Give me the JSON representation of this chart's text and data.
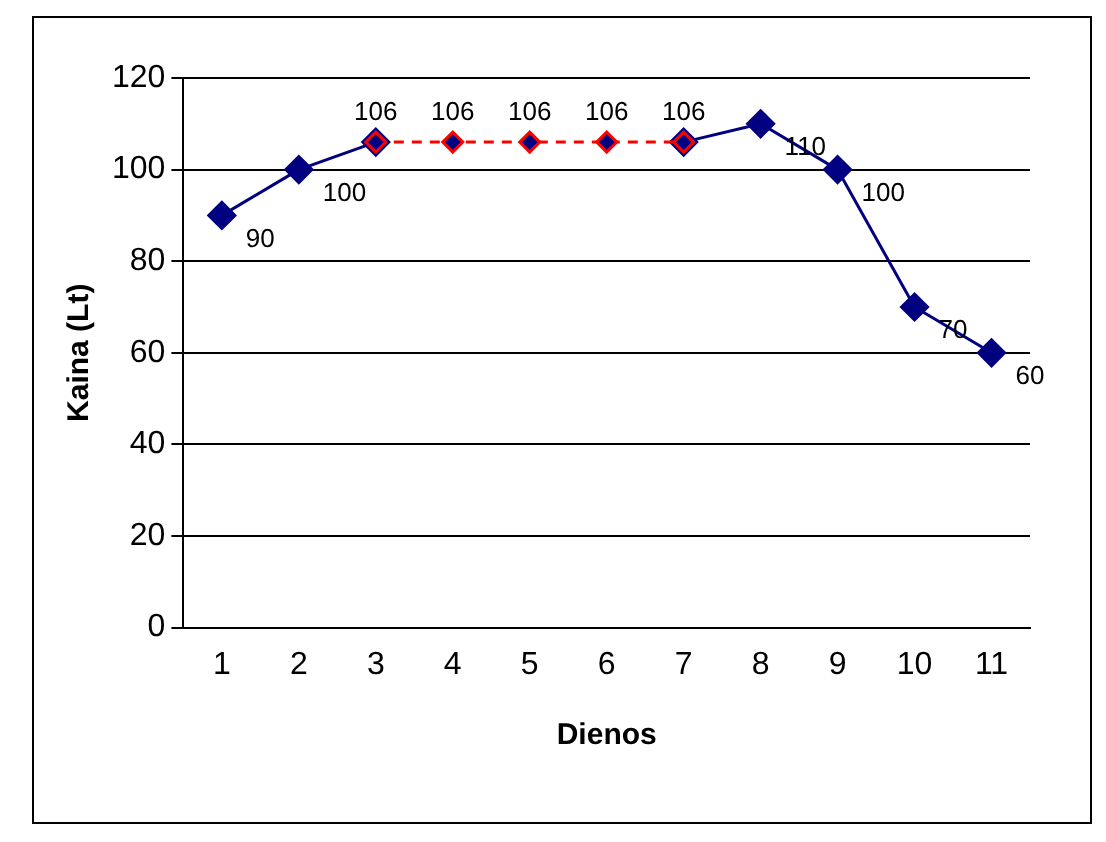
{
  "chart_data": {
    "type": "line",
    "xlabel": "Dienos",
    "ylabel": "Kaina (Lt)",
    "categories": [
      "1",
      "2",
      "3",
      "4",
      "5",
      "6",
      "7",
      "8",
      "9",
      "10",
      "11"
    ],
    "series": [
      {
        "color": "#000080",
        "line_style": "solid",
        "values": [
          90,
          100,
          106,
          null,
          null,
          null,
          106,
          110,
          100,
          70,
          60
        ],
        "value_labels": [
          "90",
          "100",
          null,
          null,
          null,
          null,
          null,
          "110",
          "100",
          "70",
          "60"
        ]
      },
      {
        "color": "#ff0000",
        "line_style": "dashed",
        "values": [
          null,
          null,
          106,
          106,
          106,
          106,
          106,
          null,
          null,
          null,
          null
        ],
        "value_labels": [
          null,
          null,
          "106",
          "106",
          "106",
          "106",
          "106",
          null,
          null,
          null,
          null
        ]
      }
    ],
    "ylim": [
      0,
      120
    ],
    "yticks": [
      0,
      20,
      40,
      60,
      80,
      100,
      120
    ],
    "grid": "y",
    "legend": false,
    "marker": "diamond"
  }
}
